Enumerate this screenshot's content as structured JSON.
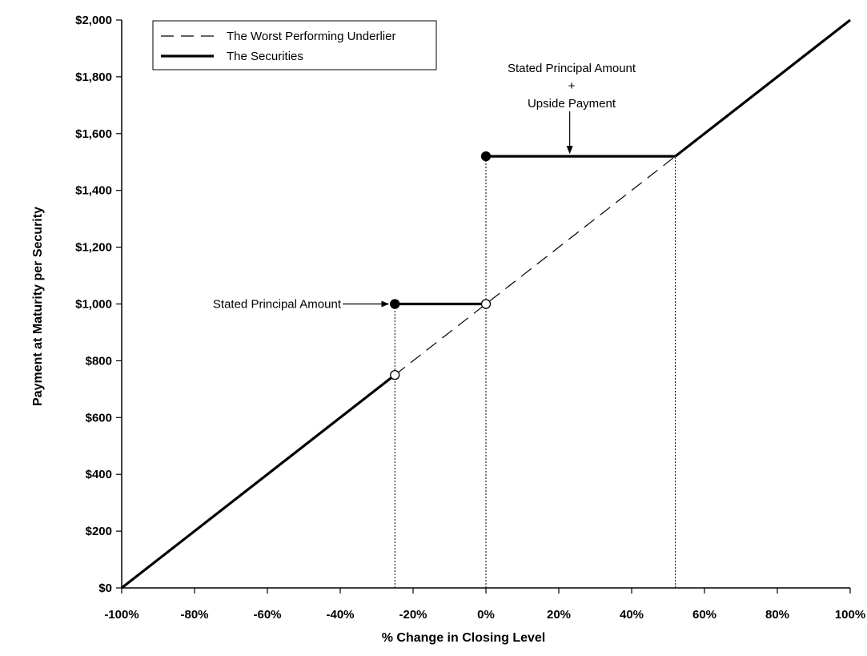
{
  "chart_data": {
    "type": "line",
    "title": "",
    "xlabel": "% Change in Closing Level",
    "ylabel": "Payment at Maturity per Security",
    "xlim": [
      -100,
      100
    ],
    "ylim": [
      0,
      2000
    ],
    "x_ticks": [
      -100,
      -80,
      -60,
      -40,
      -20,
      0,
      20,
      40,
      60,
      80,
      100
    ],
    "x_tick_labels": [
      "-100%",
      "-80%",
      "-60%",
      "-40%",
      "-20%",
      "0%",
      "20%",
      "40%",
      "60%",
      "80%",
      "100%"
    ],
    "y_ticks": [
      0,
      200,
      400,
      600,
      800,
      1000,
      1200,
      1400,
      1600,
      1800,
      2000
    ],
    "y_tick_labels": [
      "$0",
      "$200",
      "$400",
      "$600",
      "$800",
      "$1,000",
      "$1,200",
      "$1,400",
      "$1,600",
      "$1,800",
      "$2,000"
    ],
    "grid": false,
    "legend_position": "top-left",
    "series": [
      {
        "name": "The Worst Performing Underlier",
        "style": "dashed",
        "x": [
          -25,
          52
        ],
        "y": [
          750,
          1520
        ]
      },
      {
        "name": "The Securities",
        "style": "solid",
        "segments": [
          {
            "x": [
              -100,
              -25
            ],
            "y": [
              0,
              750
            ]
          },
          {
            "x": [
              -25,
              0
            ],
            "y": [
              1000,
              1000
            ]
          },
          {
            "x": [
              0,
              52
            ],
            "y": [
              1520,
              1520
            ]
          },
          {
            "x": [
              52,
              100
            ],
            "y": [
              1520,
              2000
            ]
          }
        ]
      }
    ],
    "points": [
      {
        "x": -25,
        "y": 1000,
        "fill": "filled"
      },
      {
        "x": 0,
        "y": 1520,
        "fill": "filled"
      },
      {
        "x": 0,
        "y": 1000,
        "fill": "open"
      },
      {
        "x": -25,
        "y": 750,
        "fill": "open"
      }
    ],
    "reference_lines": [
      {
        "x": -25,
        "y_from": 0,
        "y_to": 1000
      },
      {
        "x": 0,
        "y_from": 0,
        "y_to": 1520
      },
      {
        "x": 52,
        "y_from": 0,
        "y_to": 1520
      }
    ],
    "annotations": [
      {
        "lines": [
          "Stated Principal Amount"
        ],
        "points_to": {
          "x": -25,
          "y": 1000
        }
      },
      {
        "lines": [
          "Stated Principal Amount",
          "+",
          "Upside Payment"
        ],
        "points_to": {
          "x": 23,
          "y": 1520
        }
      }
    ],
    "colors": {
      "line": "#000000",
      "background": "#ffffff"
    }
  }
}
